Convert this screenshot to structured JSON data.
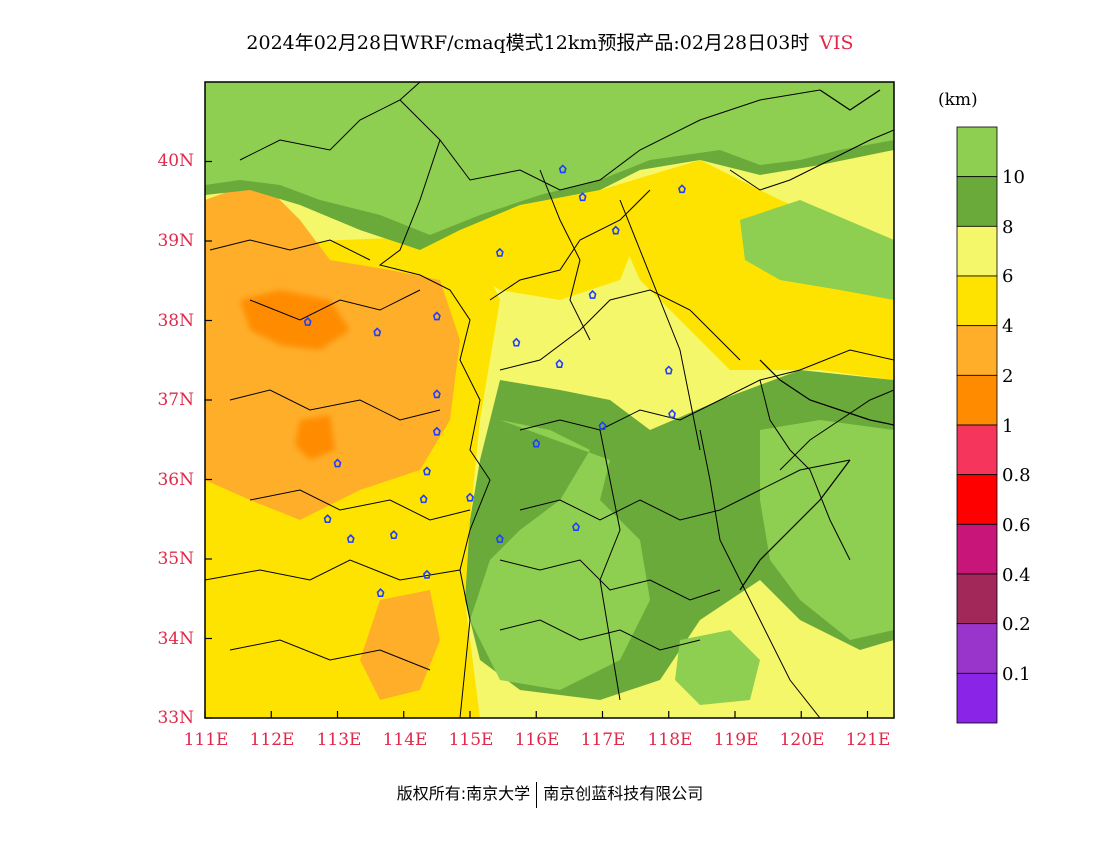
{
  "title": {
    "main": "2024年02月28日WRF/cmaq模式12km预报产品:02月28日03时",
    "variable": "VIS"
  },
  "colors": {
    "tick_labels": "#e0284a",
    "frame": "#000000"
  },
  "map": {
    "lat_ticks": [
      "40N",
      "39N",
      "38N",
      "37N",
      "36N",
      "35N",
      "34N",
      "33N"
    ],
    "lon_ticks": [
      "111E",
      "112E",
      "113E",
      "114E",
      "115E",
      "116E",
      "117E",
      "118E",
      "119E",
      "120E",
      "121E"
    ],
    "lat_range": [
      33,
      41
    ],
    "lon_range": [
      111,
      121.4
    ],
    "city_marker_icon": "city-marker-icon",
    "cities": [
      {
        "lon": 116.4,
        "lat": 39.9
      },
      {
        "lon": 116.7,
        "lat": 39.55
      },
      {
        "lon": 117.2,
        "lat": 39.13
      },
      {
        "lon": 118.2,
        "lat": 39.65
      },
      {
        "lon": 115.45,
        "lat": 38.85
      },
      {
        "lon": 112.55,
        "lat": 37.98
      },
      {
        "lon": 113.6,
        "lat": 37.85
      },
      {
        "lon": 114.5,
        "lat": 38.05
      },
      {
        "lon": 115.7,
        "lat": 37.72
      },
      {
        "lon": 116.35,
        "lat": 37.45
      },
      {
        "lon": 116.85,
        "lat": 38.32
      },
      {
        "lon": 114.5,
        "lat": 37.07
      },
      {
        "lon": 114.5,
        "lat": 36.6
      },
      {
        "lon": 113.0,
        "lat": 36.2
      },
      {
        "lon": 114.35,
        "lat": 36.1
      },
      {
        "lon": 114.3,
        "lat": 35.75
      },
      {
        "lon": 115.0,
        "lat": 35.77
      },
      {
        "lon": 116.0,
        "lat": 36.45
      },
      {
        "lon": 117.0,
        "lat": 36.67
      },
      {
        "lon": 118.05,
        "lat": 36.82
      },
      {
        "lon": 118.0,
        "lat": 37.37
      },
      {
        "lon": 112.85,
        "lat": 35.5
      },
      {
        "lon": 113.2,
        "lat": 35.25
      },
      {
        "lon": 113.85,
        "lat": 35.3
      },
      {
        "lon": 115.45,
        "lat": 35.25
      },
      {
        "lon": 116.6,
        "lat": 35.4
      },
      {
        "lon": 114.35,
        "lat": 34.8
      },
      {
        "lon": 113.65,
        "lat": 34.57
      }
    ]
  },
  "colorbar": {
    "unit": "(km)",
    "labels": [
      "10",
      "8",
      "6",
      "4",
      "2",
      "1",
      "0.8",
      "0.6",
      "0.4",
      "0.2",
      "0.1"
    ],
    "colors": [
      "#8ece50",
      "#6aaa3a",
      "#f5f76a",
      "#ffe300",
      "#ffae2a",
      "#ff8c00",
      "#f5355c",
      "#ff0000",
      "#c8157a",
      "#a3285a",
      "#9a35cc",
      "#8a24e6"
    ]
  },
  "footer": {
    "left": "版权所有:南京大学",
    "right": "南京创蓝科技有限公司"
  }
}
